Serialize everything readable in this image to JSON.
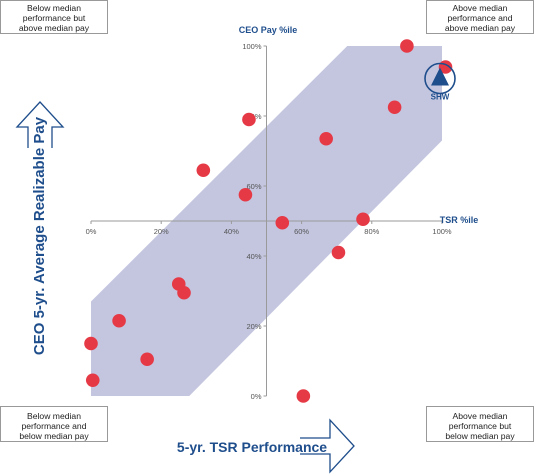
{
  "colors": {
    "band": "#c4c6e0",
    "point": "#e63946",
    "accent": "#1f4e8c",
    "axis": "#9a9a9a",
    "tick_text": "#555555"
  },
  "corners": {
    "top_left": [
      "Below median",
      "performance but",
      "above median pay"
    ],
    "top_right": [
      "Above median",
      "performance and",
      "above median pay"
    ],
    "bottom_left": [
      "Below median",
      "performance and",
      "below median pay"
    ],
    "bottom_right": [
      "Above median",
      "performance but",
      "below median pay"
    ]
  },
  "chart_data": {
    "type": "scatter",
    "xlabel": "5-yr. TSR Performance",
    "ylabel": "CEO 5-yr. Average Realizable Pay",
    "x_axis_title": "TSR %ile",
    "y_axis_title": "CEO Pay %ile",
    "xlim": [
      0,
      100
    ],
    "ylim": [
      0,
      100
    ],
    "x_ticks": [
      "0%",
      "20%",
      "40%",
      "60%",
      "80%",
      "100%"
    ],
    "y_ticks": [
      "0%",
      "20%",
      "40%",
      "60%",
      "80%",
      "100%"
    ],
    "band_polygon": [
      [
        0,
        0
      ],
      [
        28,
        0
      ],
      [
        100,
        73
      ],
      [
        100,
        100
      ],
      [
        73,
        100
      ],
      [
        0,
        27
      ]
    ],
    "points": [
      {
        "x": 0,
        "y": 15
      },
      {
        "x": 0.5,
        "y": 4.5
      },
      {
        "x": 8,
        "y": 21.5
      },
      {
        "x": 16,
        "y": 10.5
      },
      {
        "x": 25,
        "y": 32
      },
      {
        "x": 26.5,
        "y": 29.5
      },
      {
        "x": 32,
        "y": 64.5
      },
      {
        "x": 44,
        "y": 57.5
      },
      {
        "x": 45,
        "y": 79
      },
      {
        "x": 54.5,
        "y": 49.5
      },
      {
        "x": 60.5,
        "y": 0
      },
      {
        "x": 67,
        "y": 73.5
      },
      {
        "x": 70.5,
        "y": 41
      },
      {
        "x": 77.5,
        "y": 50.5
      },
      {
        "x": 86.5,
        "y": 82.5
      },
      {
        "x": 90,
        "y": 100
      },
      {
        "x": 101,
        "y": 94
      }
    ],
    "highlight": {
      "label": "SHW",
      "x": 100,
      "y": 91
    }
  }
}
